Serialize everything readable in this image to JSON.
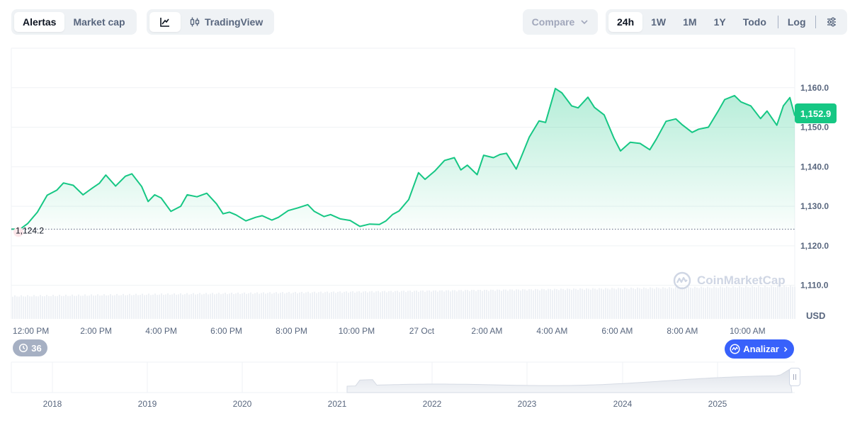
{
  "toolbar": {
    "view_tabs": [
      {
        "label": "Alertas",
        "active": true
      },
      {
        "label": "Market cap",
        "active": false
      }
    ],
    "chart_types": [
      {
        "label": "",
        "icon": "line-chart-icon",
        "active": true
      },
      {
        "label": "TradingView",
        "icon": "candlestick-icon",
        "active": false
      }
    ],
    "compare_label": "Compare",
    "ranges": [
      {
        "label": "24h",
        "active": true
      },
      {
        "label": "1W",
        "active": false
      },
      {
        "label": "1M",
        "active": false
      },
      {
        "label": "1Y",
        "active": false
      },
      {
        "label": "Todo",
        "active": false
      }
    ],
    "log_label": "Log",
    "settings_icon": "sliders-icon"
  },
  "colors": {
    "line": "#16c784",
    "accent_blue": "#3861fb",
    "text_muted": "#58667e",
    "grid": "#eff2f5"
  },
  "chart_data": {
    "type": "area",
    "currency_label": "USD",
    "reference_label": "1,124.2",
    "current_label": "1,152.9",
    "y_ticks": [
      "1,160.0",
      "1,150.0",
      "1,140.0",
      "1,130.0",
      "1,120.0",
      "1,110.0"
    ],
    "y_tick_values": [
      1160,
      1150,
      1140,
      1130,
      1120,
      1110
    ],
    "ylim": [
      1101.5,
      1170
    ],
    "reference_value": 1124.2,
    "x_ticks": [
      "12:00 PM",
      "2:00 PM",
      "4:00 PM",
      "6:00 PM",
      "8:00 PM",
      "10:00 PM",
      "27 Oct",
      "2:00 AM",
      "4:00 AM",
      "6:00 AM",
      "8:00 AM",
      "10:00 AM"
    ],
    "x_tick_hours": [
      12,
      14,
      16,
      18,
      20,
      22,
      24,
      26,
      28,
      30,
      32,
      34
    ],
    "xlim_hours": [
      11.4,
      35.45
    ],
    "series": [
      {
        "x_hours": [
          11.4,
          11.5,
          11.7,
          11.9,
          12.2,
          12.5,
          12.8,
          13.0,
          13.3,
          13.6,
          13.9,
          14.1,
          14.3,
          14.6,
          14.9,
          15.1,
          15.4,
          15.6,
          15.8,
          16.0,
          16.3,
          16.6,
          16.8,
          17.1,
          17.4,
          17.7,
          17.9,
          18.1,
          18.3,
          18.6,
          18.9,
          19.1,
          19.4,
          19.6,
          19.9,
          20.2,
          20.5,
          20.7,
          21.0,
          21.2,
          21.5,
          21.8,
          22.1,
          22.4,
          22.7,
          22.9,
          23.1,
          23.3,
          23.6,
          23.9,
          24.1,
          24.4,
          24.7,
          25.0,
          25.2,
          25.4,
          25.7,
          25.9,
          26.2,
          26.4,
          26.6,
          26.9,
          27.1,
          27.3,
          27.6,
          27.8,
          28.1,
          28.3,
          28.6,
          28.8,
          29.1,
          29.3,
          29.6,
          29.9,
          30.1,
          30.4,
          30.7,
          31.0,
          31.2,
          31.5,
          31.8,
          32.0,
          32.3,
          32.5,
          32.8,
          33.1,
          33.3,
          33.6,
          33.8,
          34.1,
          34.4,
          34.6,
          34.9,
          35.1,
          35.3,
          35.45
        ],
        "values": [
          1124.2,
          1124.2,
          1124.4,
          1125.6,
          1128.5,
          1132.8,
          1134.1,
          1135.9,
          1135.3,
          1132.9,
          1134.7,
          1135.8,
          1137.9,
          1135.1,
          1137.6,
          1138.2,
          1135.0,
          1131.2,
          1132.9,
          1132.1,
          1128.7,
          1130.0,
          1132.9,
          1132.4,
          1133.3,
          1130.6,
          1128.1,
          1128.5,
          1127.8,
          1126.3,
          1127.2,
          1127.6,
          1126.5,
          1127.2,
          1128.9,
          1129.6,
          1130.4,
          1128.7,
          1127.4,
          1127.9,
          1126.8,
          1126.4,
          1124.9,
          1125.5,
          1125.4,
          1126.3,
          1127.9,
          1128.8,
          1131.7,
          1138.5,
          1136.8,
          1138.9,
          1141.6,
          1142.3,
          1139.2,
          1140.4,
          1138.0,
          1142.9,
          1142.3,
          1143.1,
          1143.4,
          1139.4,
          1143.4,
          1147.5,
          1151.6,
          1151.2,
          1159.8,
          1158.7,
          1155.4,
          1154.9,
          1157.6,
          1155.0,
          1153.1,
          1147.2,
          1144.0,
          1146.2,
          1145.9,
          1144.3,
          1147.0,
          1151.5,
          1152.1,
          1150.6,
          1148.7,
          1149.5,
          1150.0,
          1154.1,
          1157.0,
          1158.0,
          1156.4,
          1155.4,
          1152.2,
          1154.1,
          1150.5,
          1155.4,
          1157.5,
          1152.9
        ]
      }
    ],
    "overview": {
      "x_ticks": [
        "2018",
        "2019",
        "2020",
        "2021",
        "2022",
        "2023",
        "2024",
        "2025"
      ]
    }
  },
  "controls": {
    "history_badge": "36",
    "analyze_label": "Analizar",
    "watermark_text": "CoinMarketCap"
  }
}
